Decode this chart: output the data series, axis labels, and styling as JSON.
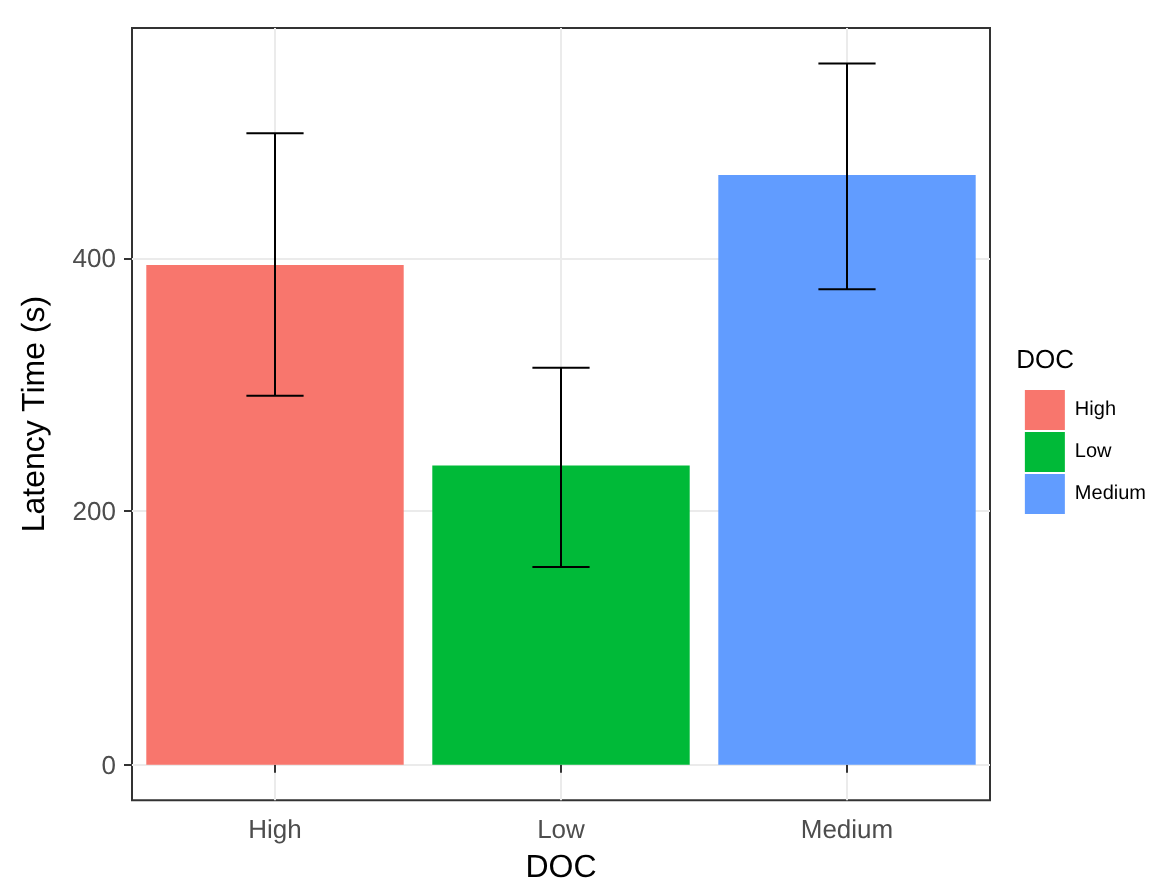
{
  "chart_data": {
    "type": "bar",
    "xlabel": "DOC",
    "ylabel": "Latency Time (s)",
    "legend_title": "DOC",
    "categories": [
      "High",
      "Low",
      "Medium"
    ],
    "series": [
      {
        "name": "High",
        "color": "#f8766d",
        "values": [
          394,
          null,
          null
        ],
        "errors": [
          [
            291,
            498
          ],
          null,
          null
        ]
      },
      {
        "name": "Low",
        "color": "#00ba38",
        "values": [
          null,
          236,
          null
        ],
        "errors": [
          null,
          [
            156,
            313
          ],
          null
        ]
      },
      {
        "name": "Medium",
        "color": "#619cff",
        "values": [
          null,
          null,
          465
        ],
        "errors": [
          null,
          null,
          [
            375,
            553
          ]
        ]
      }
    ],
    "ylim": [
      -28,
      581
    ],
    "yticks": [
      0,
      200,
      400
    ],
    "grid": true,
    "legend": "right"
  }
}
